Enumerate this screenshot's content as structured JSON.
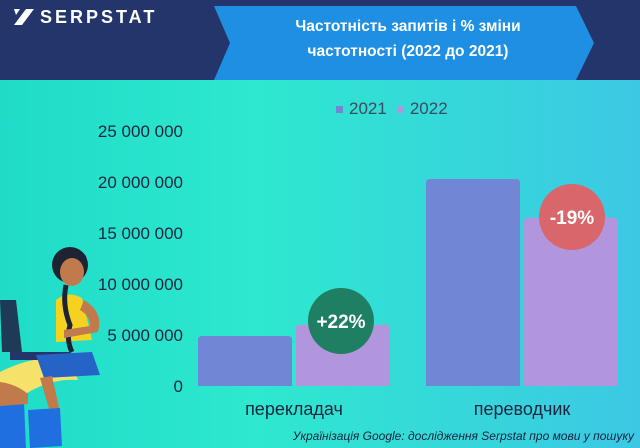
{
  "brand": {
    "logo_text": "SERPSTAT"
  },
  "header": {
    "title_line1": "Частотність запитів і % зміни",
    "title_line2": "частотності (2022 до 2021)"
  },
  "source_note": "Українізація Google: дослідження Serpstat про мови у пошуку",
  "colors": {
    "header_bg": "#23356a",
    "banner": "#1e8fe3",
    "series_2021": "#7286d6",
    "series_2022": "#b196dd",
    "badge_up": "#1f7f62",
    "badge_down": "#d9666b"
  },
  "chart_data": {
    "type": "bar",
    "categories": [
      "перекладач",
      "переводчик"
    ],
    "series": [
      {
        "name": "2021",
        "values": [
          4900000,
          20300000
        ]
      },
      {
        "name": "2022",
        "values": [
          6000000,
          16500000
        ]
      }
    ],
    "ylim": [
      0,
      25000000
    ],
    "yticks": [
      0,
      5000000,
      10000000,
      15000000,
      20000000,
      25000000
    ],
    "ytick_labels": [
      "0",
      "5 000 000",
      "10 000 000",
      "15 000 000",
      "20 000 000",
      "25 000 000"
    ],
    "change_labels": [
      "+22%",
      "-19%"
    ],
    "legend_position": "top",
    "grid": false
  }
}
